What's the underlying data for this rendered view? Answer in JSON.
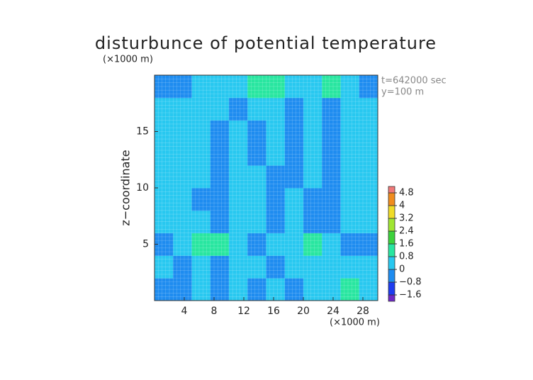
{
  "chart_data": {
    "type": "contour",
    "title": "disturbunce of potential temperature",
    "y_unit": "(×1000 m)",
    "x_unit": "(×1000 m)",
    "ylabel": "z−coordinate",
    "annotations": [
      "t=642000 sec",
      "y=100 m"
    ],
    "xlim": [
      0,
      30
    ],
    "ylim": [
      0,
      20
    ],
    "xticks": [
      4,
      8,
      12,
      16,
      20,
      24,
      28
    ],
    "yticks": [
      5,
      10,
      15
    ],
    "grid": true,
    "x": [
      1.25,
      3.75,
      6.25,
      8.75,
      11.25,
      13.75,
      16.25,
      18.75,
      21.25,
      23.75,
      26.25,
      28.75
    ],
    "y": [
      1,
      3,
      5,
      7,
      9,
      11,
      13,
      15,
      17,
      19
    ],
    "values": [
      [
        -0.4,
        -0.2,
        0.3,
        -0.4,
        0.2,
        -0.3,
        0.2,
        -0.4,
        0.2,
        0.3,
        0.8,
        0.3
      ],
      [
        0.2,
        -0.3,
        0.3,
        -0.2,
        0.2,
        0.3,
        -0.3,
        0.2,
        0.3,
        0.3,
        0.6,
        0.2
      ],
      [
        -0.6,
        0.2,
        0.9,
        1.4,
        0.4,
        -0.5,
        0.3,
        0.4,
        1.2,
        0.3,
        -0.5,
        -0.6
      ],
      [
        0.1,
        0.4,
        0.1,
        -0.5,
        0.3,
        0.3,
        -0.3,
        0.4,
        -0.2,
        -0.5,
        0.4,
        0.1
      ],
      [
        0.2,
        0.1,
        -0.2,
        -0.4,
        0.3,
        0.2,
        -0.4,
        0.2,
        -0.3,
        -0.3,
        0.1,
        0.2
      ],
      [
        0.3,
        0.2,
        0.1,
        -0.3,
        0.3,
        0.3,
        -0.2,
        -0.3,
        0.3,
        -0.2,
        0.2,
        0.3
      ],
      [
        0.3,
        0.3,
        0.2,
        -0.3,
        0.3,
        -0.4,
        0.2,
        -0.3,
        0.2,
        -0.3,
        0.3,
        0.3
      ],
      [
        0.2,
        0.3,
        0.3,
        -0.2,
        0.2,
        -0.3,
        0.3,
        -0.3,
        0.2,
        -0.3,
        0.3,
        0.2
      ],
      [
        0.1,
        0.3,
        0.3,
        0.2,
        -0.2,
        0.2,
        0.3,
        -0.3,
        0.3,
        -0.2,
        0.2,
        0.1
      ],
      [
        -0.5,
        -0.3,
        0.2,
        0.3,
        0.6,
        1.2,
        1.4,
        0.4,
        0.3,
        1.0,
        0.3,
        -0.5
      ]
    ],
    "levels": [
      {
        "value": -1.6,
        "label": "−1.6"
      },
      {
        "value": -0.8,
        "label": "−0.8"
      },
      0,
      0.8,
      1.6,
      2.4,
      3.2,
      4,
      4.8
    ],
    "colors": [
      "#6e28c8",
      "#1e3cf0",
      "#1e8cf0",
      "#28c8f0",
      "#28e6a0",
      "#3cd23c",
      "#a0e632",
      "#f0dc28",
      "#f08c1e",
      "#f07878"
    ]
  }
}
